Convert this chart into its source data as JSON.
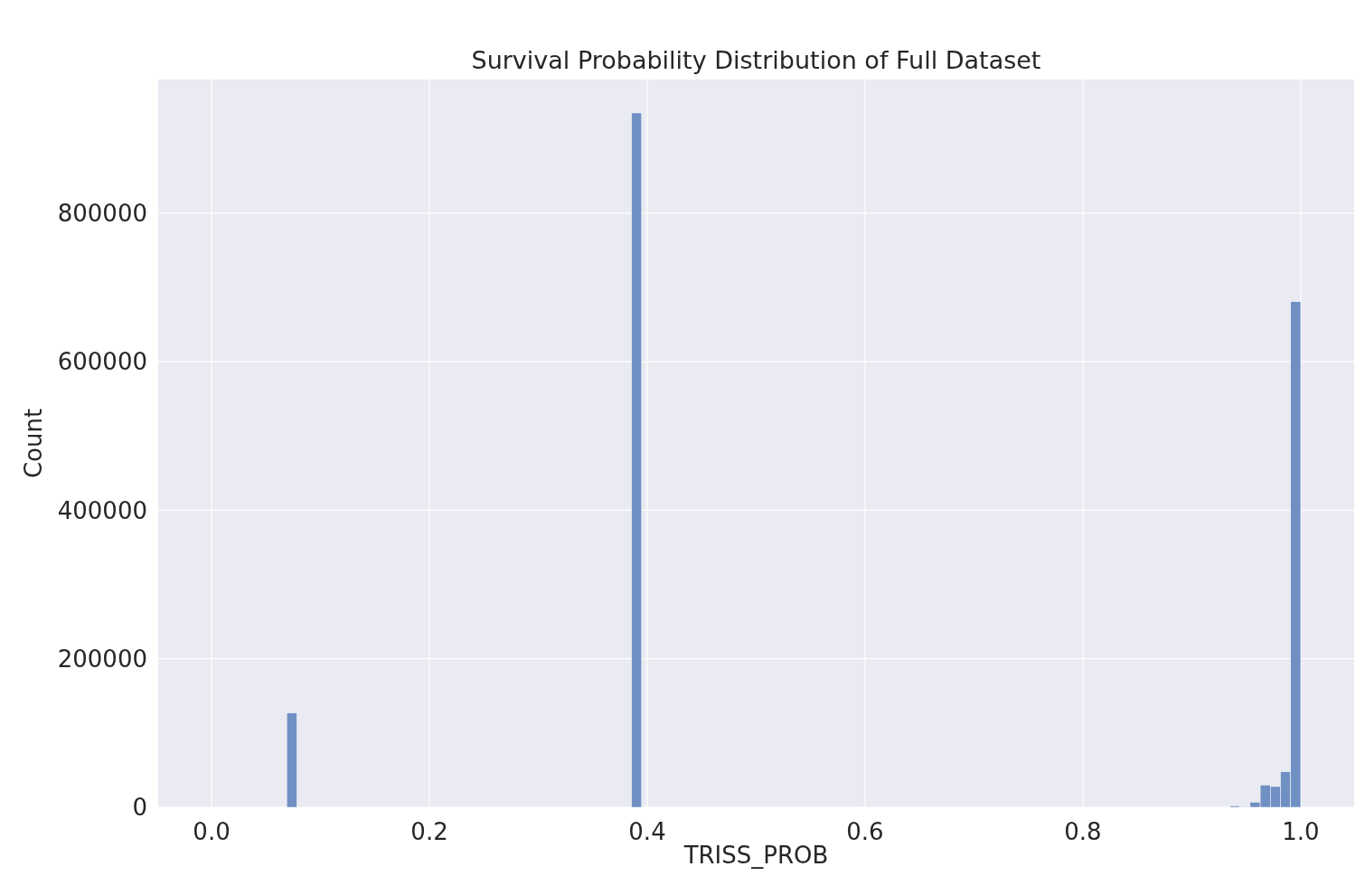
{
  "chart_data": {
    "type": "histogram",
    "title": "Survival Probability Distribution of Full Dataset",
    "xlabel": "TRISS_PROB",
    "ylabel": "Count",
    "bins": [
      0.069,
      0.07831,
      0.08762,
      0.09693,
      0.10624,
      0.11555,
      0.12486,
      0.13417,
      0.14348,
      0.15279,
      0.1621,
      0.17141,
      0.18072,
      0.19003,
      0.19934,
      0.20865,
      0.21796,
      0.22727,
      0.23658,
      0.24589,
      0.2552,
      0.26451,
      0.27382,
      0.28313,
      0.29244,
      0.30175,
      0.31106,
      0.32037,
      0.32968,
      0.33899,
      0.3483,
      0.35761,
      0.36692,
      0.37623,
      0.38554,
      0.39485,
      0.40416,
      0.41347,
      0.42278,
      0.43209,
      0.4414,
      0.45071,
      0.46002,
      0.46933,
      0.47864,
      0.48795,
      0.49726,
      0.50657,
      0.51588,
      0.52519,
      0.5345,
      0.54381,
      0.55312,
      0.56243,
      0.57174,
      0.58105,
      0.59036,
      0.59967,
      0.60898,
      0.61829,
      0.6276,
      0.63691,
      0.64622,
      0.65553,
      0.66484,
      0.67415,
      0.68346,
      0.69277,
      0.70208,
      0.71139,
      0.7207,
      0.73001,
      0.73932,
      0.74863,
      0.75794,
      0.76725,
      0.77656,
      0.78587,
      0.79518,
      0.80449,
      0.8138,
      0.82311,
      0.83242,
      0.84173,
      0.85104,
      0.86035,
      0.86966,
      0.87897,
      0.88828,
      0.89759,
      0.9069,
      0.91621,
      0.92552,
      0.93483,
      0.94414,
      0.95345,
      0.96276,
      0.97207,
      0.98138,
      0.99069,
      1.0
    ],
    "values": [
      127000,
      0,
      0,
      0,
      0,
      0,
      0,
      0,
      0,
      0,
      0,
      0,
      0,
      0,
      0,
      0,
      0,
      0,
      0,
      0,
      0,
      0,
      0,
      0,
      0,
      0,
      0,
      0,
      0,
      0,
      0,
      0,
      0,
      0,
      935000,
      0,
      0,
      0,
      0,
      0,
      0,
      0,
      0,
      0,
      0,
      0,
      0,
      0,
      0,
      0,
      0,
      0,
      0,
      0,
      0,
      0,
      0,
      0,
      0,
      0,
      0,
      0,
      0,
      0,
      0,
      0,
      0,
      0,
      0,
      0,
      0,
      0,
      0,
      0,
      0,
      0,
      0,
      0,
      0,
      0,
      0,
      0,
      0,
      0,
      0,
      0,
      0,
      0,
      0,
      0,
      0,
      0,
      0,
      2000,
      1000,
      7000,
      30000,
      28000,
      48000,
      681000
    ],
    "color": "#7090c4",
    "xlim": [
      -0.049,
      1.049
    ],
    "xticks": [
      {
        "value": 0,
        "label": "0.0"
      },
      0.2,
      0.4,
      0.6,
      0.8,
      {
        "value": 1,
        "label": "1.0"
      }
    ],
    "ylim": [
      0,
      980000
    ],
    "yticks": [
      0,
      200000,
      400000,
      600000,
      800000
    ],
    "grid": true
  }
}
